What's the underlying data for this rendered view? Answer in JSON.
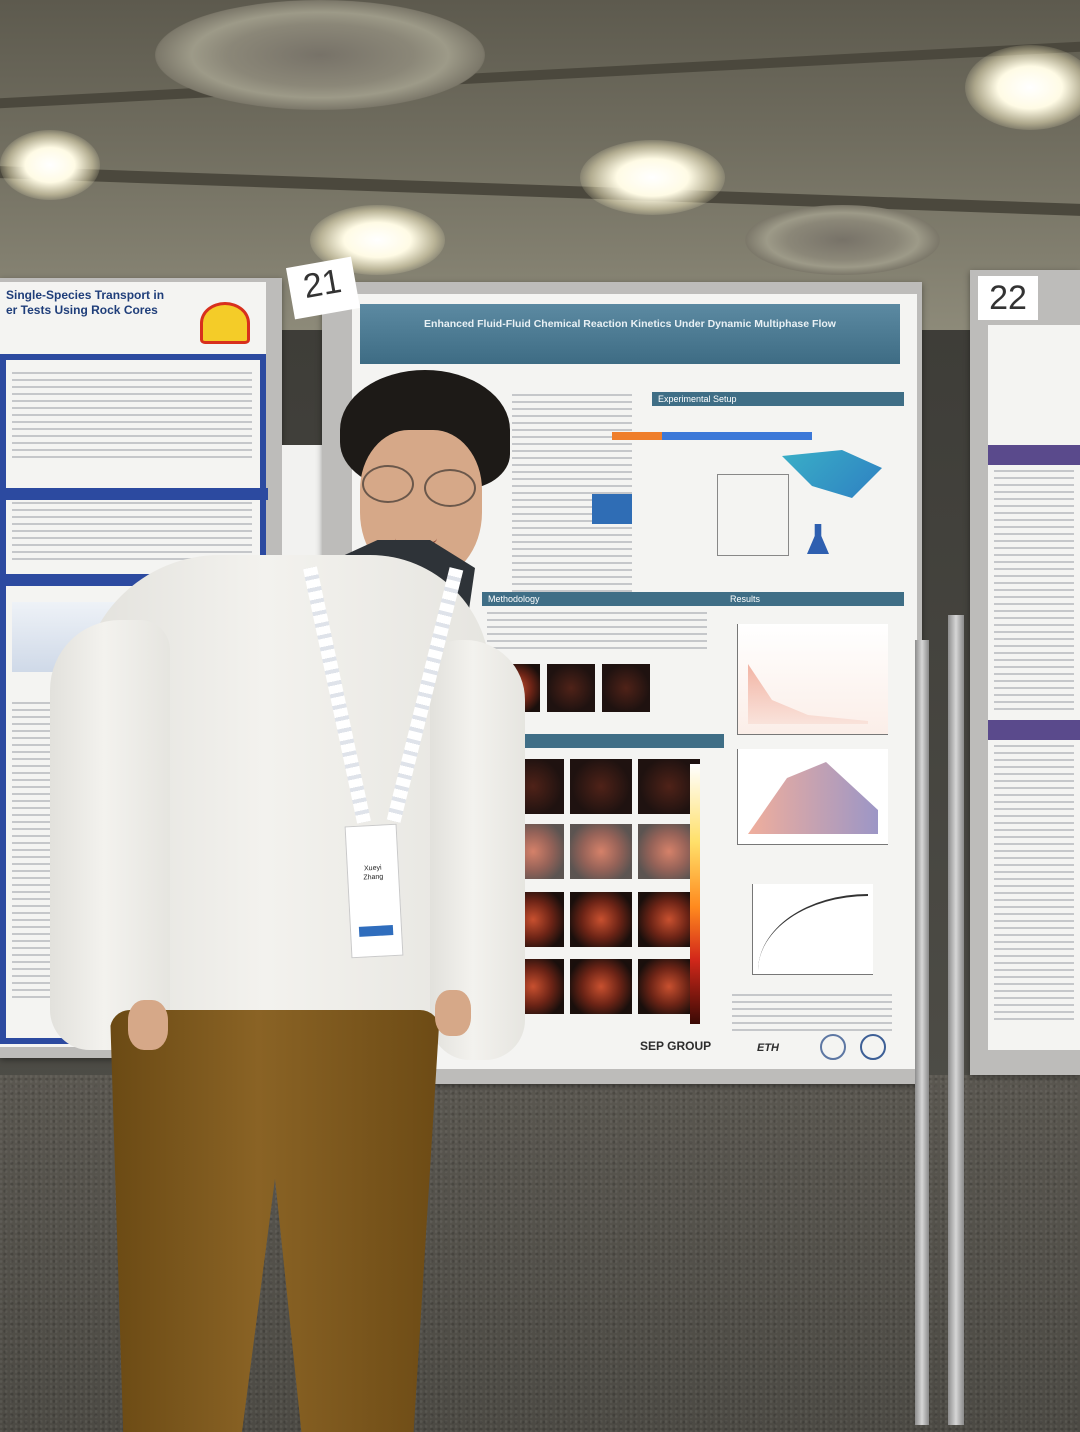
{
  "scene": {
    "description_tag": "poster-session",
    "board_numbers": [
      "21",
      "22"
    ]
  },
  "center_poster": {
    "title": "Enhanced Fluid-Fluid Chemical Reaction Kinetics Under Dynamic Multiphase Flow",
    "sections": [
      "Experimental Setup",
      "Methodology",
      "Results"
    ],
    "footer_logos": [
      "SEP GROUP",
      "ETH"
    ]
  },
  "left_poster": {
    "title_line_1": "Single-Species Transport in",
    "title_line_2": "er Tests Using Rock Cores"
  },
  "badge": {
    "first_name": "Xueyi",
    "last_name": "Zhang"
  },
  "colors": {
    "poster_header": "#3f6e86",
    "sweater": "#f0efea",
    "pants": "#7d5a1f"
  }
}
